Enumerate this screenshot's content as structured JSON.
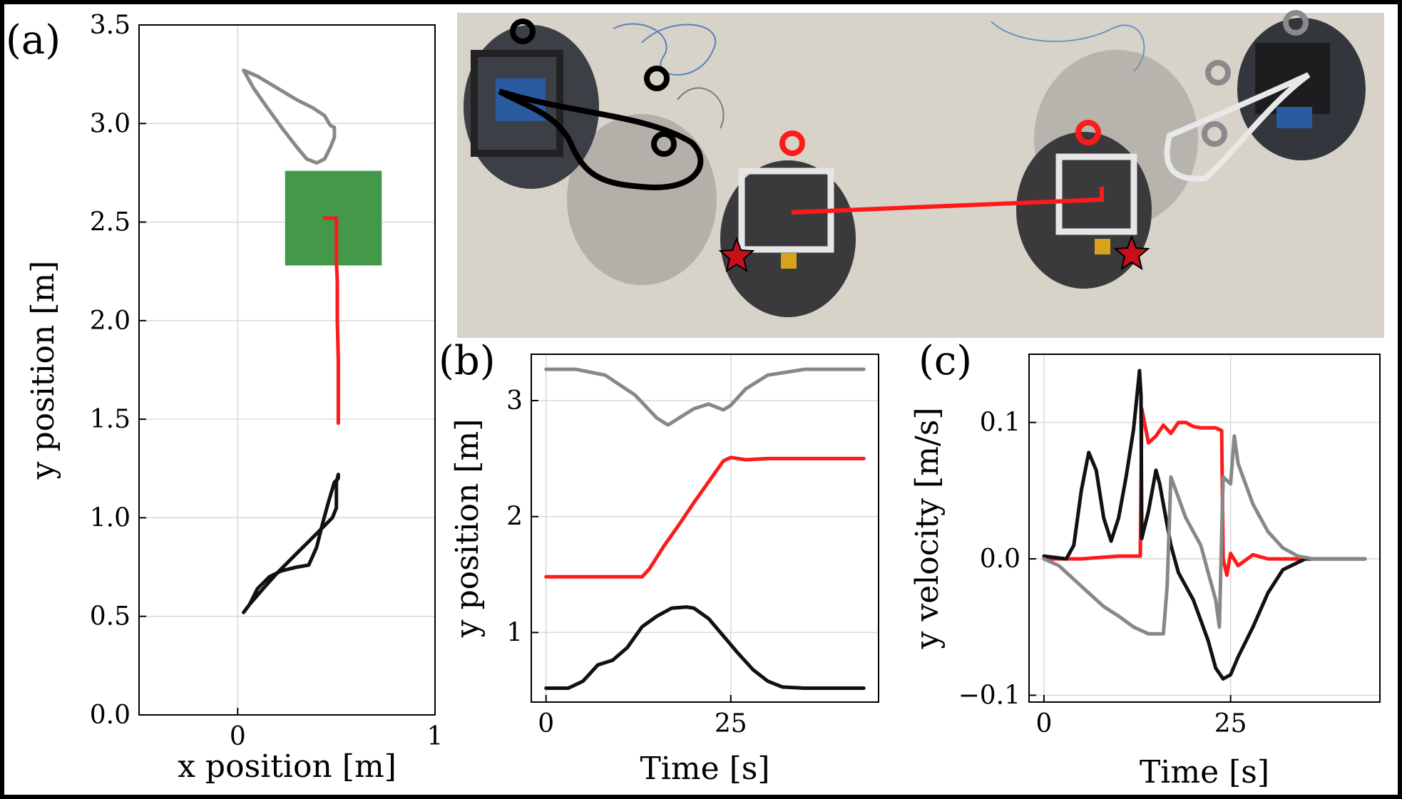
{
  "colors": {
    "red": "#ff1a1a",
    "black": "#111111",
    "gray": "#888888",
    "green": "#44984a",
    "grid": "#d9d9d9",
    "photo_bg": "#d9d4cb"
  },
  "photo": {
    "description_icons": "overhead-photo-of-three-robots",
    "star_icon": "star-icon",
    "ring_icon": "ring-marker-icon"
  },
  "chart_data": [
    {
      "id": "a",
      "panel_label": "(a)",
      "type": "line",
      "xlabel": "x position [m]",
      "ylabel": "y position [m]",
      "xlim": [
        -0.5,
        1.0
      ],
      "ylim": [
        0.0,
        3.5
      ],
      "xticks": [
        0,
        1
      ],
      "yticks": [
        0.0,
        0.5,
        1.0,
        1.5,
        2.0,
        2.5,
        3.0,
        3.5
      ],
      "grid": true,
      "goal_region": {
        "x": [
          0.24,
          0.73
        ],
        "y": [
          2.28,
          2.76
        ],
        "color": "#44984a"
      },
      "series": [
        {
          "color": "#ff1a1a",
          "x": [
            0.51,
            0.51,
            0.51,
            0.505,
            0.505,
            0.505,
            0.5,
            0.5,
            0.5,
            0.5,
            0.5,
            0.5,
            0.47,
            0.44
          ],
          "y": [
            1.48,
            1.6,
            1.8,
            2.0,
            2.1,
            2.2,
            2.3,
            2.4,
            2.48,
            2.5,
            2.51,
            2.52,
            2.52,
            2.52
          ]
        },
        {
          "color": "#111111",
          "x": [
            0.03,
            0.06,
            0.1,
            0.16,
            0.22,
            0.3,
            0.36,
            0.4,
            0.43,
            0.46,
            0.49,
            0.51,
            0.51,
            0.5,
            0.5,
            0.48,
            0.44,
            0.38,
            0.3,
            0.2,
            0.12,
            0.06,
            0.03
          ],
          "y": [
            0.52,
            0.56,
            0.64,
            0.7,
            0.73,
            0.75,
            0.76,
            0.85,
            0.97,
            1.08,
            1.18,
            1.2,
            1.22,
            1.18,
            1.05,
            1.0,
            0.96,
            0.9,
            0.82,
            0.72,
            0.63,
            0.56,
            0.52
          ]
        },
        {
          "color": "#888888",
          "x": [
            0.03,
            0.1,
            0.2,
            0.3,
            0.38,
            0.44,
            0.47,
            0.49,
            0.49,
            0.47,
            0.44,
            0.4,
            0.35,
            0.3,
            0.23,
            0.15,
            0.08,
            0.03
          ],
          "y": [
            3.27,
            3.24,
            3.18,
            3.12,
            3.08,
            3.04,
            2.99,
            2.98,
            2.93,
            2.88,
            2.82,
            2.8,
            2.82,
            2.88,
            2.97,
            3.08,
            3.18,
            3.27
          ]
        }
      ]
    },
    {
      "id": "b",
      "panel_label": "(b)",
      "type": "line",
      "xlabel": "Time [s]",
      "ylabel": "y position [m]",
      "xlim": [
        -2,
        45
      ],
      "ylim": [
        0.4,
        3.4
      ],
      "xticks": [
        0,
        25
      ],
      "yticks": [
        1,
        2,
        3
      ],
      "grid": true,
      "series": [
        {
          "color": "#888888",
          "x": [
            0,
            4,
            8,
            12,
            15,
            16.5,
            18,
            20,
            22,
            24,
            25,
            27,
            30,
            35,
            43
          ],
          "y": [
            3.27,
            3.27,
            3.22,
            3.05,
            2.85,
            2.79,
            2.85,
            2.93,
            2.97,
            2.92,
            2.96,
            3.1,
            3.22,
            3.27,
            3.27
          ]
        },
        {
          "color": "#ff1a1a",
          "x": [
            0,
            13,
            14,
            16,
            18,
            20,
            22,
            24,
            25,
            27,
            30,
            35,
            43
          ],
          "y": [
            1.48,
            1.48,
            1.55,
            1.75,
            1.93,
            2.12,
            2.3,
            2.48,
            2.51,
            2.49,
            2.5,
            2.5,
            2.5
          ]
        },
        {
          "color": "#111111",
          "x": [
            0,
            3,
            5,
            7,
            9,
            11,
            13,
            15,
            17,
            19,
            20,
            22,
            24,
            26,
            28,
            30,
            32,
            35,
            43
          ],
          "y": [
            0.52,
            0.52,
            0.58,
            0.72,
            0.76,
            0.87,
            1.05,
            1.14,
            1.21,
            1.22,
            1.21,
            1.12,
            0.97,
            0.82,
            0.68,
            0.58,
            0.53,
            0.52,
            0.52
          ]
        }
      ]
    },
    {
      "id": "c",
      "panel_label": "(c)",
      "type": "line",
      "xlabel": "Time [s]",
      "ylabel": "y velocity [m/s]",
      "xlim": [
        -2,
        45
      ],
      "ylim": [
        -0.105,
        0.15
      ],
      "xticks": [
        0,
        25
      ],
      "yticks": [
        -0.1,
        0.0,
        0.1
      ],
      "ytick_labels": [
        "−0.1",
        "0.0",
        "0.1"
      ],
      "grid": true,
      "series": [
        {
          "color": "#ff1a1a",
          "x": [
            0,
            5,
            10,
            12.9,
            13.1,
            14,
            15,
            16,
            17,
            18,
            19,
            20,
            21,
            22,
            23,
            23.8,
            24,
            24.5,
            25,
            26,
            28,
            30,
            35,
            43
          ],
          "y": [
            0.0,
            0.0,
            0.002,
            0.002,
            0.11,
            0.085,
            0.09,
            0.098,
            0.092,
            0.1,
            0.1,
            0.097,
            0.096,
            0.096,
            0.096,
            0.094,
            0.0,
            -0.012,
            0.004,
            -0.005,
            0.003,
            0.0,
            0.0,
            0.0
          ]
        },
        {
          "color": "#111111",
          "x": [
            0,
            3,
            4,
            5,
            6,
            7,
            8,
            9,
            10,
            11,
            12,
            12.8,
            13,
            13.1,
            14,
            15,
            15.5,
            16,
            17,
            18,
            19,
            20,
            21,
            22,
            23,
            24,
            25,
            26,
            28,
            30,
            32,
            35,
            43
          ],
          "y": [
            0.002,
            0.0,
            0.01,
            0.05,
            0.078,
            0.065,
            0.03,
            0.013,
            0.03,
            0.06,
            0.095,
            0.138,
            0.12,
            0.015,
            0.035,
            0.065,
            0.055,
            0.04,
            0.01,
            -0.01,
            -0.02,
            -0.03,
            -0.045,
            -0.06,
            -0.08,
            -0.088,
            -0.085,
            -0.072,
            -0.05,
            -0.025,
            -0.008,
            0.0,
            0.0
          ]
        },
        {
          "color": "#888888",
          "x": [
            0,
            2,
            4,
            6,
            8,
            10,
            12,
            14,
            15,
            16,
            16.5,
            17,
            18,
            19,
            20,
            21,
            22,
            23,
            23.5,
            24,
            25,
            25.5,
            26,
            28,
            30,
            32,
            34,
            36,
            43
          ],
          "y": [
            0.0,
            -0.005,
            -0.015,
            -0.025,
            -0.035,
            -0.042,
            -0.05,
            -0.055,
            -0.055,
            -0.055,
            -0.02,
            0.06,
            0.045,
            0.03,
            0.02,
            0.01,
            -0.01,
            -0.03,
            -0.05,
            0.06,
            0.055,
            0.09,
            0.07,
            0.04,
            0.02,
            0.008,
            0.002,
            0.0,
            0.0
          ]
        }
      ]
    }
  ]
}
